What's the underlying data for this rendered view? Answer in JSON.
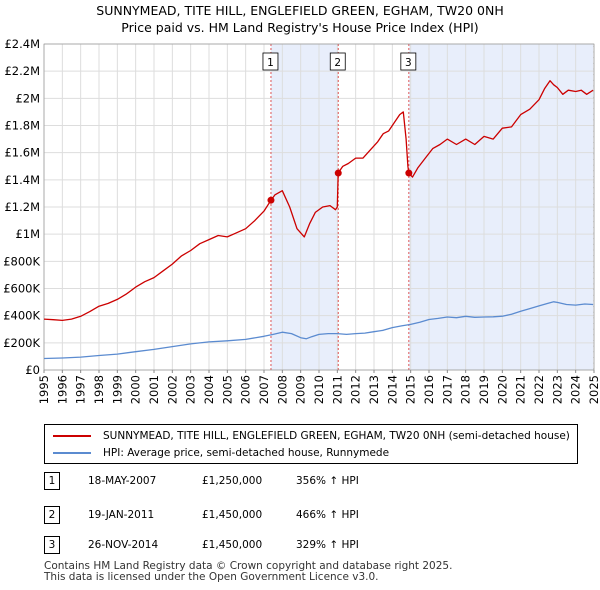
{
  "header": {
    "title_line1": "SUNNYMEAD, TITE HILL, ENGLEFIELD GREEN, EGHAM, TW20 0NH",
    "title_line2": "Price paid vs. HM Land Registry's House Price Index (HPI)"
  },
  "colors": {
    "property": "#cc0000",
    "hpi": "#5b8bd0",
    "shade": "#e8eefb",
    "marker_line": "#dd5555"
  },
  "chart_data": {
    "type": "line",
    "xlim": [
      1995,
      2025
    ],
    "ylim": [
      0,
      2400000
    ],
    "x_ticks": [
      "1995",
      "1996",
      "1997",
      "1998",
      "1999",
      "2000",
      "2001",
      "2002",
      "2003",
      "2004",
      "2005",
      "2006",
      "2007",
      "2008",
      "2009",
      "2010",
      "2011",
      "2012",
      "2013",
      "2014",
      "2015",
      "2016",
      "2017",
      "2018",
      "2019",
      "2020",
      "2021",
      "2022",
      "2023",
      "2024",
      "2025"
    ],
    "y_ticks": [
      {
        "value": 0,
        "label": "£0"
      },
      {
        "value": 200000,
        "label": "£200K"
      },
      {
        "value": 400000,
        "label": "£400K"
      },
      {
        "value": 600000,
        "label": "£600K"
      },
      {
        "value": 800000,
        "label": "£800K"
      },
      {
        "value": 1000000,
        "label": "£1M"
      },
      {
        "value": 1200000,
        "label": "£1.2M"
      },
      {
        "value": 1400000,
        "label": "£1.4M"
      },
      {
        "value": 1600000,
        "label": "£1.6M"
      },
      {
        "value": 1800000,
        "label": "£1.8M"
      },
      {
        "value": 2000000,
        "label": "£2M"
      },
      {
        "value": 2200000,
        "label": "£2.2M"
      },
      {
        "value": 2400000,
        "label": "£2.4M"
      }
    ],
    "shaded_ranges": [
      [
        2007.38,
        2011.05
      ],
      [
        2014.9,
        2024.95
      ]
    ],
    "hatched_range": [
      2024.95,
      2025
    ],
    "series": [
      {
        "name": "SUNNYMEAD, TITE HILL, ENGLEFIELD GREEN, EGHAM, TW20 0NH (semi-detached house)",
        "color": "#cc0000",
        "x": [
          1995.0,
          1995.5,
          1996.0,
          1996.5,
          1997.0,
          1997.5,
          1998.0,
          1998.5,
          1999.0,
          1999.5,
          2000.0,
          2000.5,
          2001.0,
          2001.5,
          2002.0,
          2002.5,
          2003.0,
          2003.5,
          2004.0,
          2004.5,
          2005.0,
          2005.5,
          2006.0,
          2006.5,
          2007.0,
          2007.38,
          2007.6,
          2008.0,
          2008.4,
          2008.8,
          2009.2,
          2009.5,
          2009.8,
          2010.2,
          2010.6,
          2010.9,
          2011.0,
          2011.05,
          2011.3,
          2011.6,
          2012.0,
          2012.4,
          2012.8,
          2013.2,
          2013.5,
          2013.8,
          2014.1,
          2014.4,
          2014.6,
          2014.75,
          2014.85,
          2014.9,
          2015.1,
          2015.4,
          2015.8,
          2016.2,
          2016.6,
          2017.0,
          2017.5,
          2018.0,
          2018.5,
          2019.0,
          2019.5,
          2020.0,
          2020.5,
          2021.0,
          2021.5,
          2022.0,
          2022.3,
          2022.6,
          2022.8,
          2023.0,
          2023.3,
          2023.6,
          2024.0,
          2024.3,
          2024.6,
          2024.95
        ],
        "y": [
          375000,
          370000,
          365000,
          375000,
          395000,
          430000,
          470000,
          490000,
          520000,
          560000,
          610000,
          650000,
          680000,
          730000,
          780000,
          840000,
          880000,
          930000,
          960000,
          990000,
          980000,
          1010000,
          1040000,
          1100000,
          1170000,
          1250000,
          1290000,
          1320000,
          1200000,
          1040000,
          980000,
          1080000,
          1160000,
          1200000,
          1210000,
          1180000,
          1200000,
          1450000,
          1500000,
          1520000,
          1560000,
          1560000,
          1620000,
          1680000,
          1740000,
          1760000,
          1820000,
          1880000,
          1900000,
          1700000,
          1500000,
          1450000,
          1420000,
          1490000,
          1560000,
          1630000,
          1660000,
          1700000,
          1660000,
          1700000,
          1660000,
          1720000,
          1700000,
          1780000,
          1790000,
          1880000,
          1920000,
          1990000,
          2070000,
          2130000,
          2100000,
          2080000,
          2030000,
          2060000,
          2050000,
          2060000,
          2030000,
          2060000
        ]
      },
      {
        "name": "HPI: Average price, semi-detached house, Runnymede",
        "color": "#5b8bd0",
        "x": [
          1995.0,
          1996.0,
          1997.0,
          1998.0,
          1999.0,
          2000.0,
          2001.0,
          2002.0,
          2003.0,
          2004.0,
          2005.0,
          2006.0,
          2007.0,
          2007.5,
          2008.0,
          2008.5,
          2009.0,
          2009.3,
          2009.6,
          2010.0,
          2010.5,
          2011.0,
          2011.5,
          2012.0,
          2012.5,
          2013.0,
          2013.5,
          2014.0,
          2014.5,
          2015.0,
          2015.5,
          2016.0,
          2016.5,
          2017.0,
          2017.5,
          2018.0,
          2018.5,
          2019.0,
          2019.5,
          2020.0,
          2020.5,
          2021.0,
          2021.5,
          2022.0,
          2022.5,
          2022.8,
          2023.0,
          2023.5,
          2024.0,
          2024.5,
          2024.95
        ],
        "y": [
          85000,
          88000,
          95000,
          107000,
          117000,
          135000,
          152000,
          172000,
          192000,
          207000,
          215000,
          225000,
          248000,
          262000,
          278000,
          268000,
          238000,
          230000,
          245000,
          262000,
          268000,
          268000,
          262000,
          268000,
          272000,
          282000,
          292000,
          312000,
          325000,
          336000,
          352000,
          372000,
          380000,
          390000,
          385000,
          395000,
          388000,
          390000,
          392000,
          396000,
          410000,
          432000,
          452000,
          472000,
          492000,
          502000,
          498000,
          482000,
          478000,
          486000,
          482000
        ]
      }
    ],
    "sales": [
      {
        "label": "1",
        "x": 2007.38,
        "price": 1250000
      },
      {
        "label": "2",
        "x": 2011.05,
        "price": 1450000
      },
      {
        "label": "3",
        "x": 2014.9,
        "price": 1450000
      }
    ]
  },
  "legend": {
    "property_label": "SUNNYMEAD, TITE HILL, ENGLEFIELD GREEN, EGHAM, TW20 0NH (semi-detached house)",
    "hpi_label": "HPI: Average price, semi-detached house, Runnymede"
  },
  "transactions": [
    {
      "num": "1",
      "date": "18-MAY-2007",
      "price": "£1,250,000",
      "hpi": "356% ↑ HPI"
    },
    {
      "num": "2",
      "date": "19-JAN-2011",
      "price": "£1,450,000",
      "hpi": "466% ↑ HPI"
    },
    {
      "num": "3",
      "date": "26-NOV-2014",
      "price": "£1,450,000",
      "hpi": "329% ↑ HPI"
    }
  ],
  "footer": {
    "line1": "Contains HM Land Registry data © Crown copyright and database right 2025.",
    "line2": "This data is licensed under the Open Government Licence v3.0."
  }
}
